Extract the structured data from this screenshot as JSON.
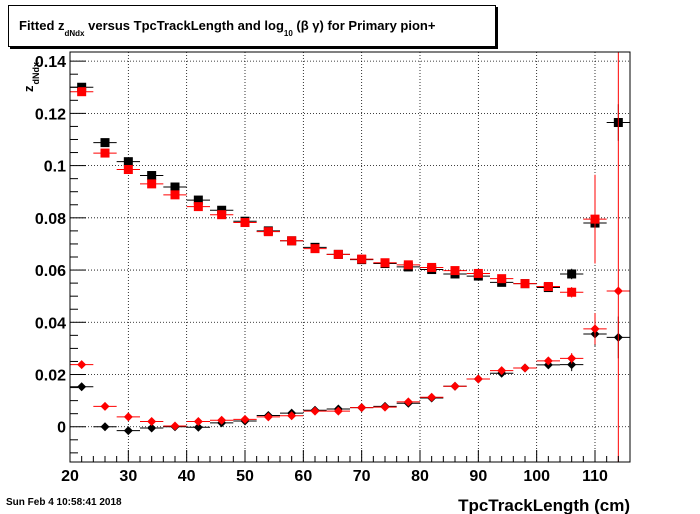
{
  "title": {
    "p1": "Fitted  z",
    "sub1": "dNdx",
    "p2": "  versus TpcTrackLength and log",
    "sub2": "10",
    "p3": " (β γ) for Primary pion+"
  },
  "datestamp": "Sun Feb  4 10:58:41 2018",
  "chart_data": {
    "type": "scatter",
    "xlabel": "TpcTrackLength (cm)",
    "ylabel": "z_dNdx",
    "ylabel_main": "z",
    "ylabel_sub": "dNdx",
    "xlim": [
      20,
      116
    ],
    "ylim": [
      -0.0135,
      0.1435
    ],
    "x_ticks": [
      20,
      30,
      40,
      50,
      60,
      70,
      80,
      90,
      100,
      110
    ],
    "x_tick_labels": [
      "20",
      "30",
      "40",
      "50",
      "60",
      "70",
      "80",
      "90",
      "100",
      "110"
    ],
    "y_ticks": [
      0,
      0.02,
      0.04,
      0.06,
      0.08,
      0.1,
      0.12,
      0.14
    ],
    "y_tick_labels": [
      "0",
      "0.02",
      "0.04",
      "0.06",
      "0.08",
      "0.1",
      "0.12",
      "0.14"
    ],
    "grid": true,
    "x_bin_half_width": 2,
    "colors": {
      "black": "#000000",
      "red": "#ff0000"
    },
    "series": [
      {
        "marker": "square",
        "color": "#000000",
        "x": [
          22,
          26,
          30,
          34,
          38,
          42,
          46,
          50,
          54,
          58,
          62,
          66,
          70,
          74,
          78,
          82,
          86,
          90,
          94,
          98,
          102,
          106,
          110,
          114
        ],
        "y": [
          0.13,
          0.1088,
          0.1015,
          0.0962,
          0.0918,
          0.0868,
          0.0829,
          0.0787,
          0.075,
          0.0712,
          0.0687,
          0.066,
          0.064,
          0.0625,
          0.0612,
          0.0602,
          0.0585,
          0.0577,
          0.0553,
          0.0548,
          0.0533,
          0.0585,
          0.078,
          0.1165
        ],
        "yerr": [
          0.0008,
          0.0006,
          0.0005,
          0.0005,
          0.0004,
          0.0004,
          0.0004,
          0.0004,
          0.0004,
          0.0004,
          0.0004,
          0.0004,
          0.0004,
          0.0004,
          0.0005,
          0.0005,
          0.0006,
          0.0007,
          0.0008,
          0.0009,
          0.0012,
          0.002,
          0.004,
          0.007
        ]
      },
      {
        "marker": "square",
        "color": "#ff0000",
        "x": [
          22,
          26,
          30,
          34,
          38,
          42,
          46,
          50,
          54,
          58,
          62,
          66,
          70,
          74,
          78,
          82,
          86,
          90,
          94,
          98,
          102,
          106,
          110,
          114
        ],
        "y": [
          0.1283,
          0.1048,
          0.0985,
          0.093,
          0.0888,
          0.0843,
          0.0812,
          0.0782,
          0.0747,
          0.0712,
          0.0682,
          0.066,
          0.0642,
          0.0628,
          0.062,
          0.061,
          0.0598,
          0.0587,
          0.0567,
          0.0548,
          0.0537,
          0.0515,
          0.0795,
          null
        ],
        "yerr": [
          0.0008,
          0.0006,
          0.0005,
          0.0005,
          0.0004,
          0.0004,
          0.0004,
          0.0004,
          0.0004,
          0.0004,
          0.0004,
          0.0004,
          0.0004,
          0.0004,
          0.0005,
          0.0005,
          0.0006,
          0.0007,
          0.0008,
          0.0009,
          0.0012,
          0.002,
          0.017,
          null
        ]
      },
      {
        "marker": "diamond",
        "color": "#000000",
        "x": [
          22,
          26,
          30,
          34,
          38,
          42,
          46,
          50,
          54,
          58,
          62,
          66,
          70,
          74,
          78,
          82,
          86,
          90,
          94,
          98,
          102,
          106,
          110,
          114
        ],
        "y": [
          0.0153,
          0.0,
          -0.0015,
          -0.0005,
          0.0,
          -0.0002,
          0.0015,
          0.0022,
          0.0043,
          0.0052,
          0.0063,
          0.0068,
          0.0073,
          0.0078,
          0.009,
          0.011,
          0.0155,
          0.0183,
          0.0205,
          0.0225,
          0.0237,
          0.0238,
          0.0355,
          0.0342
        ],
        "yerr": [
          0.0008,
          0.0006,
          0.0005,
          0.0005,
          0.0004,
          0.0004,
          0.0004,
          0.0004,
          0.0004,
          0.0004,
          0.0004,
          0.0004,
          0.0004,
          0.0004,
          0.0005,
          0.0005,
          0.0006,
          0.0007,
          0.0008,
          0.0009,
          0.0012,
          0.0025,
          0.0045,
          0.008
        ]
      },
      {
        "marker": "diamond",
        "color": "#ff0000",
        "x": [
          22,
          26,
          30,
          34,
          38,
          42,
          46,
          50,
          54,
          58,
          62,
          66,
          70,
          74,
          78,
          82,
          86,
          90,
          94,
          98,
          102,
          106,
          110,
          114
        ],
        "y": [
          0.0238,
          0.0078,
          0.0038,
          0.002,
          0.0003,
          0.002,
          0.0025,
          0.0028,
          0.0038,
          0.0042,
          0.006,
          0.006,
          0.0073,
          0.0075,
          0.0095,
          0.0113,
          0.0155,
          0.0183,
          0.0215,
          0.0225,
          0.0252,
          0.0262,
          0.0375,
          0.052
        ],
        "yerr": [
          0.0008,
          0.0006,
          0.0005,
          0.0005,
          0.0004,
          0.0004,
          0.0004,
          0.0004,
          0.0004,
          0.0004,
          0.0004,
          0.0004,
          0.0004,
          0.0004,
          0.0005,
          0.0005,
          0.0006,
          0.0007,
          0.0008,
          0.0009,
          0.0012,
          0.002,
          0.006,
          0.14
        ]
      }
    ]
  }
}
